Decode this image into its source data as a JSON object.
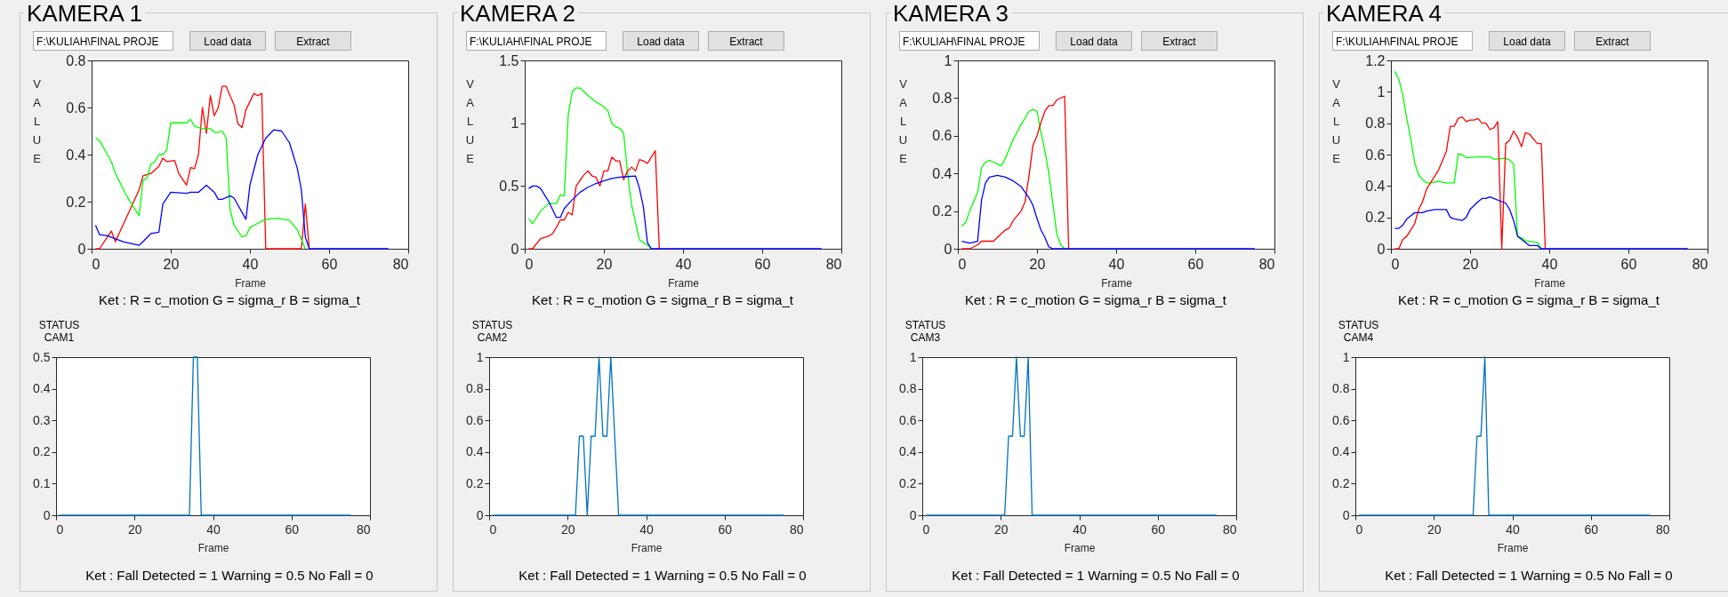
{
  "chart_data": [
    {
      "type": "line",
      "title": "KAMERA 1",
      "xlabel": "Frame",
      "ylabel": "VALUE",
      "xlim": [
        0,
        80
      ],
      "xticks": [
        0,
        20,
        40,
        60,
        80
      ],
      "ylim": [
        0,
        0.8
      ],
      "yticks": [
        0,
        0.2,
        0.4,
        0.6,
        0.8
      ],
      "annotations": [
        "F:\\KULIAH\\FINAL PROJE",
        "Load data",
        "Extract",
        "Ket : R = c_motion  G = sigma_r  B = sigma_t"
      ],
      "series": [
        {
          "color": "#ff0000",
          "x": [
            1,
            2,
            5,
            6,
            12,
            13,
            15,
            17,
            18,
            19,
            21,
            22,
            24,
            25,
            26,
            27,
            28,
            29,
            30,
            31,
            32,
            33,
            34,
            36,
            37,
            38,
            39,
            41,
            42,
            43,
            44,
            53,
            54,
            55
          ],
          "values": [
            0,
            0,
            0.075,
            0.03,
            0.25,
            0.31,
            0.32,
            0.35,
            0.385,
            0.37,
            0.375,
            0.32,
            0.27,
            0.345,
            0.34,
            0.4,
            0.6,
            0.49,
            0.65,
            0.565,
            0.6,
            0.69,
            0.69,
            0.61,
            0.53,
            0.515,
            0.59,
            0.66,
            0.65,
            0.66,
            0,
            0,
            0.19,
            0
          ]
        },
        {
          "color": "#00ff00",
          "x": [
            1,
            2,
            5,
            6,
            9,
            12,
            13,
            14,
            15,
            16,
            17,
            18,
            19,
            20,
            24,
            25,
            26,
            28,
            30,
            31,
            32,
            33,
            34,
            35,
            36,
            38,
            39,
            40,
            41,
            44,
            47,
            50,
            52,
            53,
            54
          ],
          "values": [
            0.47,
            0.46,
            0.37,
            0.32,
            0.22,
            0.14,
            0.29,
            0.3,
            0.36,
            0.37,
            0.4,
            0.4,
            0.42,
            0.535,
            0.535,
            0.55,
            0.52,
            0.51,
            0.51,
            0.495,
            0.495,
            0.5,
            0.47,
            0.165,
            0.1,
            0.05,
            0.055,
            0.09,
            0.1,
            0.125,
            0.13,
            0.12,
            0.08,
            0.04,
            0
          ]
        },
        {
          "color": "#0000ff",
          "x": [
            1,
            2,
            4,
            8,
            12,
            13,
            15,
            17,
            18,
            20,
            24,
            25,
            27,
            29,
            31,
            32,
            33,
            35,
            36,
            39,
            40,
            42,
            44,
            46,
            48,
            50,
            52,
            53,
            54,
            55,
            75
          ],
          "values": [
            0.1,
            0.06,
            0.055,
            0.03,
            0.015,
            0.03,
            0.065,
            0.07,
            0.19,
            0.24,
            0.235,
            0.24,
            0.24,
            0.27,
            0.24,
            0.21,
            0.21,
            0.225,
            0.215,
            0.125,
            0.27,
            0.4,
            0.47,
            0.505,
            0.5,
            0.45,
            0.34,
            0.25,
            0.05,
            0,
            0
          ]
        }
      ]
    },
    {
      "type": "line",
      "title": "KAMERA 2",
      "xlabel": "Frame",
      "ylabel": "VALUE",
      "xlim": [
        0,
        80
      ],
      "xticks": [
        0,
        20,
        40,
        60,
        80
      ],
      "ylim": [
        0,
        1.5
      ],
      "yticks": [
        0,
        0.5,
        1,
        1.5
      ],
      "annotations": [
        "F:\\KULIAH\\FINAL PROJE",
        "Load data",
        "Extract",
        "Ket : R = c_motion  G = sigma_r  B = sigma_t"
      ],
      "series": [
        {
          "color": "#00ff00",
          "x": [
            1,
            2,
            4,
            6,
            8,
            9,
            10,
            11,
            12,
            13,
            14,
            16,
            18,
            20,
            21,
            22,
            23,
            24,
            25,
            26,
            27,
            29,
            31,
            32
          ],
          "values": [
            0.24,
            0.2,
            0.3,
            0.36,
            0.36,
            0.43,
            0.42,
            1.07,
            1.25,
            1.28,
            1.28,
            1.22,
            1.17,
            1.13,
            1.1,
            1.0,
            0.97,
            0.96,
            0.92,
            0.6,
            0.35,
            0.07,
            0.03,
            0
          ]
        },
        {
          "color": "#ff0000",
          "x": [
            1,
            2,
            4,
            6,
            7,
            8,
            9,
            10,
            11,
            12,
            13,
            15,
            16,
            17,
            18,
            19,
            20,
            21,
            22,
            23,
            24,
            25,
            26,
            27,
            28,
            29,
            30,
            31,
            33,
            34
          ],
          "values": [
            0,
            0,
            0.08,
            0.1,
            0.12,
            0.17,
            0.23,
            0.23,
            0.29,
            0.27,
            0.5,
            0.59,
            0.62,
            0.58,
            0.57,
            0.5,
            0.62,
            0.62,
            0.73,
            0.7,
            0.7,
            0.55,
            0.62,
            0.65,
            0.62,
            0.71,
            0.7,
            0.68,
            0.78,
            0
          ]
        },
        {
          "color": "#0000ff",
          "x": [
            1,
            2,
            3,
            4,
            6,
            8,
            9,
            10,
            12,
            14,
            16,
            18,
            20,
            22,
            24,
            26,
            28,
            29,
            30,
            31,
            32,
            75
          ],
          "values": [
            0.48,
            0.5,
            0.5,
            0.48,
            0.38,
            0.25,
            0.25,
            0.32,
            0.39,
            0.45,
            0.49,
            0.52,
            0.54,
            0.56,
            0.57,
            0.575,
            0.58,
            0.48,
            0.33,
            0.05,
            0,
            0
          ]
        }
      ]
    },
    {
      "type": "line",
      "title": "KAMERA 3",
      "xlabel": "Frame",
      "ylabel": "VALUE",
      "xlim": [
        0,
        80
      ],
      "xticks": [
        0,
        20,
        40,
        60,
        80
      ],
      "ylim": [
        0,
        1
      ],
      "yticks": [
        0,
        0.2,
        0.4,
        0.6,
        0.8,
        1
      ],
      "annotations": [
        "F:\\KULIAH\\FINAL PROJE",
        "Load data",
        "Extract",
        "Ket : R = c_motion  G = sigma_r  B = sigma_t"
      ],
      "series": [
        {
          "color": "#00ff00",
          "x": [
            1,
            2,
            3,
            4,
            5,
            6,
            7,
            8,
            9,
            10,
            11,
            12,
            14,
            16,
            18,
            19,
            20,
            21,
            22,
            23,
            24,
            25,
            26,
            27
          ],
          "values": [
            0.12,
            0.14,
            0.2,
            0.25,
            0.3,
            0.43,
            0.46,
            0.47,
            0.46,
            0.45,
            0.44,
            0.48,
            0.58,
            0.66,
            0.73,
            0.74,
            0.73,
            0.62,
            0.52,
            0.4,
            0.24,
            0.08,
            0.02,
            0
          ]
        },
        {
          "color": "#ff0000",
          "x": [
            1,
            3,
            5,
            6,
            8,
            9,
            10,
            11,
            12,
            13,
            14,
            16,
            17,
            18,
            19,
            20,
            21,
            22,
            23,
            24,
            25,
            27,
            28
          ],
          "values": [
            0,
            0,
            0.02,
            0.04,
            0.04,
            0.04,
            0.06,
            0.08,
            0.1,
            0.11,
            0.15,
            0.2,
            0.25,
            0.39,
            0.55,
            0.6,
            0.67,
            0.73,
            0.76,
            0.76,
            0.79,
            0.81,
            0
          ]
        },
        {
          "color": "#0000ff",
          "x": [
            1,
            3,
            4,
            5,
            6,
            7,
            8,
            10,
            12,
            14,
            16,
            17,
            18,
            19,
            20,
            21,
            22,
            23,
            24,
            75
          ],
          "values": [
            0.04,
            0.03,
            0.035,
            0.04,
            0.26,
            0.35,
            0.38,
            0.39,
            0.38,
            0.36,
            0.33,
            0.3,
            0.27,
            0.23,
            0.16,
            0.1,
            0.06,
            0.01,
            0,
            0
          ]
        }
      ]
    },
    {
      "type": "line",
      "title": "KAMERA 4",
      "xlabel": "Frame",
      "ylabel": "VALUE",
      "xlim": [
        0,
        80
      ],
      "xticks": [
        0,
        20,
        40,
        60,
        80
      ],
      "ylim": [
        0,
        1.2
      ],
      "yticks": [
        0,
        0.2,
        0.4,
        0.6,
        0.8,
        1,
        1.2
      ],
      "annotations": [
        "F:\\KULIAH\\FINAL PROJE",
        "Load data",
        "Extract",
        "Ket : R = c_motion  G = sigma_r  B = sigma_t"
      ],
      "series": [
        {
          "color": "#00ff00",
          "x": [
            1,
            2,
            3,
            4,
            5,
            6,
            7,
            8,
            9,
            10,
            12,
            14,
            16,
            17,
            18,
            19,
            22,
            25,
            26,
            28,
            29,
            30,
            31,
            32,
            33,
            34,
            37,
            38
          ],
          "values": [
            1.13,
            1.08,
            0.98,
            0.83,
            0.7,
            0.55,
            0.47,
            0.44,
            0.42,
            0.42,
            0.43,
            0.42,
            0.42,
            0.605,
            0.6,
            0.58,
            0.585,
            0.585,
            0.57,
            0.575,
            0.575,
            0.565,
            0.54,
            0.08,
            0.07,
            0.05,
            0.04,
            0
          ]
        },
        {
          "color": "#ff0000",
          "x": [
            1,
            2,
            3,
            4,
            5,
            6,
            7,
            8,
            9,
            10,
            12,
            14,
            15,
            16,
            17,
            18,
            19,
            20,
            21,
            22,
            23,
            24,
            25,
            26,
            27,
            28,
            29,
            30,
            31,
            32,
            33,
            34,
            35,
            36,
            37,
            38,
            39
          ],
          "values": [
            0,
            0,
            0.06,
            0.08,
            0.12,
            0.16,
            0.25,
            0.3,
            0.38,
            0.42,
            0.5,
            0.62,
            0.78,
            0.78,
            0.83,
            0.84,
            0.81,
            0.82,
            0.82,
            0.83,
            0.8,
            0.8,
            0.76,
            0.77,
            0.81,
            0,
            0.67,
            0.69,
            0.75,
            0.71,
            0.65,
            0.74,
            0.73,
            0.7,
            0.67,
            0.67,
            0
          ]
        },
        {
          "color": "#0000ff",
          "x": [
            1,
            2,
            3,
            4,
            5,
            6,
            8,
            9,
            11,
            14,
            15,
            16,
            18,
            19,
            20,
            22,
            23,
            24,
            25,
            26,
            28,
            29,
            30,
            31,
            32,
            33,
            34,
            35,
            37,
            38,
            75
          ],
          "values": [
            0.13,
            0.13,
            0.15,
            0.19,
            0.21,
            0.23,
            0.23,
            0.24,
            0.25,
            0.25,
            0.2,
            0.19,
            0.18,
            0.2,
            0.25,
            0.3,
            0.32,
            0.32,
            0.33,
            0.32,
            0.3,
            0.29,
            0.25,
            0.18,
            0.08,
            0.06,
            0.04,
            0.02,
            0.02,
            0,
            0
          ]
        }
      ]
    },
    {
      "type": "line",
      "title": "STATUS\nCAM1",
      "xlabel": "Frame",
      "xlim": [
        0,
        80
      ],
      "xticks": [
        0,
        20,
        40,
        60,
        80
      ],
      "ylim": [
        0,
        0.5
      ],
      "yticks": [
        0,
        0.1,
        0.2,
        0.3,
        0.4,
        0.5
      ],
      "annotations": [
        "Ket : Fall Detected = 1 Warning = 0.5  No Fall = 0"
      ],
      "series": [
        {
          "color": "#0072bd",
          "x": [
            1,
            34,
            35,
            36,
            37,
            75
          ],
          "values": [
            0,
            0,
            0.5,
            0.5,
            0,
            0
          ]
        }
      ]
    },
    {
      "type": "line",
      "title": "STATUS\nCAM2",
      "xlabel": "Frame",
      "xlim": [
        0,
        80
      ],
      "xticks": [
        0,
        20,
        40,
        60,
        80
      ],
      "ylim": [
        0,
        1
      ],
      "yticks": [
        0,
        0.2,
        0.4,
        0.6,
        0.8,
        1
      ],
      "annotations": [
        "Ket : Fall Detected = 1 Warning = 0.5  No Fall = 0"
      ],
      "series": [
        {
          "color": "#0072bd",
          "x": [
            1,
            22,
            23,
            24,
            25,
            26,
            27,
            28,
            29,
            30,
            31,
            32,
            33,
            75
          ],
          "values": [
            0,
            0,
            0.5,
            0.5,
            0,
            0.5,
            0.5,
            1,
            0.5,
            0.5,
            1,
            0.5,
            0,
            0
          ]
        }
      ]
    },
    {
      "type": "line",
      "title": "STATUS\nCAM3",
      "xlabel": "Frame",
      "xlim": [
        0,
        80
      ],
      "xticks": [
        0,
        20,
        40,
        60,
        80
      ],
      "ylim": [
        0,
        1
      ],
      "yticks": [
        0,
        0.2,
        0.4,
        0.6,
        0.8,
        1
      ],
      "annotations": [
        "Ket : Fall Detected = 1 Warning = 0.5  No Fall = 0"
      ],
      "series": [
        {
          "color": "#0072bd",
          "x": [
            1,
            21,
            22,
            23,
            24,
            25,
            26,
            27,
            28,
            75
          ],
          "values": [
            0,
            0,
            0.5,
            0.5,
            1,
            0.5,
            0.5,
            1,
            0,
            0
          ]
        }
      ]
    },
    {
      "type": "line",
      "title": "STATUS\nCAM4",
      "xlabel": "Frame",
      "xlim": [
        0,
        80
      ],
      "xticks": [
        0,
        20,
        40,
        60,
        80
      ],
      "ylim": [
        0,
        1
      ],
      "yticks": [
        0,
        0.2,
        0.4,
        0.6,
        0.8,
        1
      ],
      "annotations": [
        "Ket : Fall Detected = 1 Warning = 0.5  No Fall = 0"
      ],
      "series": [
        {
          "color": "#0072bd",
          "x": [
            1,
            30,
            31,
            32,
            33,
            34,
            75
          ],
          "values": [
            0,
            0,
            0.5,
            0.5,
            1,
            0,
            0
          ]
        }
      ]
    }
  ]
}
